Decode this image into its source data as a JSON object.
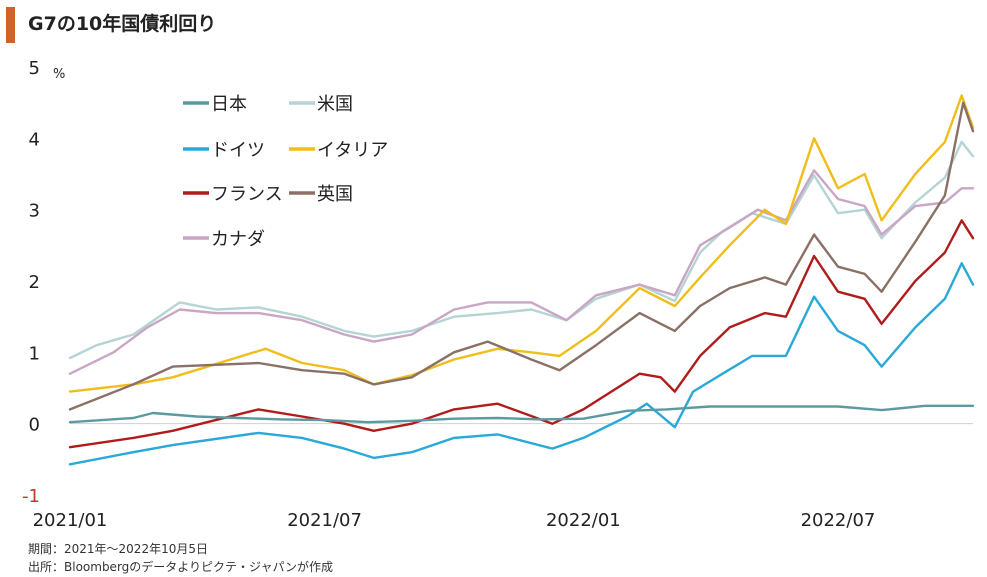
{
  "title": "G7の10年国債利回り",
  "notes": {
    "period": "期間：2021年～2022年10月5日",
    "source": "出所：Bloombergのデータよりピクテ・ジャパンが作成"
  },
  "chart_data": {
    "type": "line",
    "title": "G7の10年国債利回り",
    "ylabel": "%",
    "ylim": [
      -1,
      5
    ],
    "yticks": [
      {
        "value": 5,
        "label": "5"
      },
      {
        "value": 4,
        "label": "4"
      },
      {
        "value": 3,
        "label": "3"
      },
      {
        "value": 2,
        "label": "2"
      },
      {
        "value": 1,
        "label": "1"
      },
      {
        "value": 0,
        "label": "0"
      },
      {
        "value": -1,
        "label": "-1"
      }
    ],
    "xlim": [
      "2021-01-01",
      "2022-10-05"
    ],
    "xticks": [
      {
        "date": "2021-01-01",
        "label": "2021/01"
      },
      {
        "date": "2021-07-01",
        "label": "2021/07"
      },
      {
        "date": "2022-01-01",
        "label": "2022/01"
      },
      {
        "date": "2022-07-01",
        "label": "2022/07"
      }
    ],
    "legend_position": "top-left",
    "series": [
      {
        "name": "日本",
        "color": "#5b9aa0",
        "points": [
          [
            "2021-01-01",
            0.02
          ],
          [
            "2021-02-15",
            0.08
          ],
          [
            "2021-03-01",
            0.15
          ],
          [
            "2021-04-01",
            0.1
          ],
          [
            "2021-05-01",
            0.08
          ],
          [
            "2021-06-01",
            0.06
          ],
          [
            "2021-07-01",
            0.05
          ],
          [
            "2021-08-01",
            0.02
          ],
          [
            "2021-09-01",
            0.04
          ],
          [
            "2021-10-01",
            0.07
          ],
          [
            "2021-11-01",
            0.08
          ],
          [
            "2021-12-01",
            0.06
          ],
          [
            "2022-01-01",
            0.07
          ],
          [
            "2022-02-01",
            0.18
          ],
          [
            "2022-03-01",
            0.2
          ],
          [
            "2022-04-01",
            0.24
          ],
          [
            "2022-05-01",
            0.24
          ],
          [
            "2022-06-01",
            0.24
          ],
          [
            "2022-07-01",
            0.24
          ],
          [
            "2022-08-01",
            0.19
          ],
          [
            "2022-09-01",
            0.25
          ],
          [
            "2022-10-05",
            0.25
          ]
        ]
      },
      {
        "name": "米国",
        "color": "#b5d4d4",
        "points": [
          [
            "2021-01-01",
            0.92
          ],
          [
            "2021-01-20",
            1.1
          ],
          [
            "2021-02-15",
            1.25
          ],
          [
            "2021-03-20",
            1.7
          ],
          [
            "2021-04-15",
            1.6
          ],
          [
            "2021-05-15",
            1.63
          ],
          [
            "2021-06-15",
            1.5
          ],
          [
            "2021-07-15",
            1.3
          ],
          [
            "2021-08-05",
            1.22
          ],
          [
            "2021-09-01",
            1.3
          ],
          [
            "2021-10-01",
            1.5
          ],
          [
            "2021-11-01",
            1.55
          ],
          [
            "2021-11-25",
            1.6
          ],
          [
            "2021-12-20",
            1.45
          ],
          [
            "2022-01-10",
            1.75
          ],
          [
            "2022-02-10",
            1.95
          ],
          [
            "2022-03-07",
            1.72
          ],
          [
            "2022-03-25",
            2.4
          ],
          [
            "2022-04-10",
            2.7
          ],
          [
            "2022-05-01",
            2.95
          ],
          [
            "2022-05-25",
            2.8
          ],
          [
            "2022-06-14",
            3.48
          ],
          [
            "2022-07-01",
            2.95
          ],
          [
            "2022-07-20",
            3.0
          ],
          [
            "2022-08-01",
            2.6
          ],
          [
            "2022-08-25",
            3.1
          ],
          [
            "2022-09-15",
            3.45
          ],
          [
            "2022-09-27",
            3.95
          ],
          [
            "2022-10-05",
            3.75
          ]
        ]
      },
      {
        "name": "ドイツ",
        "color": "#2aa8d8",
        "points": [
          [
            "2021-01-01",
            -0.57
          ],
          [
            "2021-02-15",
            -0.4
          ],
          [
            "2021-03-15",
            -0.3
          ],
          [
            "2021-05-15",
            -0.13
          ],
          [
            "2021-06-15",
            -0.2
          ],
          [
            "2021-07-15",
            -0.35
          ],
          [
            "2021-08-05",
            -0.48
          ],
          [
            "2021-09-01",
            -0.4
          ],
          [
            "2021-10-01",
            -0.2
          ],
          [
            "2021-11-01",
            -0.15
          ],
          [
            "2021-12-10",
            -0.35
          ],
          [
            "2022-01-01",
            -0.2
          ],
          [
            "2022-02-01",
            0.1
          ],
          [
            "2022-02-15",
            0.28
          ],
          [
            "2022-03-07",
            -0.05
          ],
          [
            "2022-03-20",
            0.45
          ],
          [
            "2022-04-10",
            0.7
          ],
          [
            "2022-05-01",
            0.95
          ],
          [
            "2022-05-25",
            0.95
          ],
          [
            "2022-06-14",
            1.78
          ],
          [
            "2022-07-01",
            1.3
          ],
          [
            "2022-07-20",
            1.1
          ],
          [
            "2022-08-01",
            0.8
          ],
          [
            "2022-08-25",
            1.35
          ],
          [
            "2022-09-15",
            1.75
          ],
          [
            "2022-09-27",
            2.25
          ],
          [
            "2022-10-05",
            1.95
          ]
        ]
      },
      {
        "name": "イタリア",
        "color": "#f0be1a",
        "points": [
          [
            "2021-01-01",
            0.45
          ],
          [
            "2021-02-15",
            0.55
          ],
          [
            "2021-03-15",
            0.65
          ],
          [
            "2021-05-20",
            1.05
          ],
          [
            "2021-06-15",
            0.85
          ],
          [
            "2021-07-15",
            0.75
          ],
          [
            "2021-08-05",
            0.55
          ],
          [
            "2021-09-01",
            0.68
          ],
          [
            "2021-10-01",
            0.9
          ],
          [
            "2021-11-01",
            1.05
          ],
          [
            "2021-11-25",
            1.0
          ],
          [
            "2021-12-15",
            0.95
          ],
          [
            "2022-01-10",
            1.3
          ],
          [
            "2022-02-10",
            1.9
          ],
          [
            "2022-03-07",
            1.65
          ],
          [
            "2022-03-25",
            2.05
          ],
          [
            "2022-04-15",
            2.5
          ],
          [
            "2022-05-10",
            3.0
          ],
          [
            "2022-05-25",
            2.8
          ],
          [
            "2022-06-14",
            4.0
          ],
          [
            "2022-07-01",
            3.3
          ],
          [
            "2022-07-20",
            3.5
          ],
          [
            "2022-08-01",
            2.85
          ],
          [
            "2022-08-25",
            3.5
          ],
          [
            "2022-09-15",
            3.95
          ],
          [
            "2022-09-27",
            4.6
          ],
          [
            "2022-10-05",
            4.15
          ]
        ]
      },
      {
        "name": "フランス",
        "color": "#b01c1c",
        "points": [
          [
            "2021-01-01",
            -0.33
          ],
          [
            "2021-02-15",
            -0.2
          ],
          [
            "2021-03-15",
            -0.1
          ],
          [
            "2021-05-15",
            0.2
          ],
          [
            "2021-06-15",
            0.1
          ],
          [
            "2021-07-15",
            0.0
          ],
          [
            "2021-08-05",
            -0.1
          ],
          [
            "2021-09-01",
            0.0
          ],
          [
            "2021-10-01",
            0.2
          ],
          [
            "2021-11-01",
            0.28
          ],
          [
            "2021-12-10",
            0.0
          ],
          [
            "2022-01-01",
            0.2
          ],
          [
            "2022-02-10",
            0.7
          ],
          [
            "2022-02-25",
            0.65
          ],
          [
            "2022-03-07",
            0.45
          ],
          [
            "2022-03-25",
            0.95
          ],
          [
            "2022-04-15",
            1.35
          ],
          [
            "2022-05-10",
            1.55
          ],
          [
            "2022-05-25",
            1.5
          ],
          [
            "2022-06-14",
            2.35
          ],
          [
            "2022-07-01",
            1.85
          ],
          [
            "2022-07-20",
            1.75
          ],
          [
            "2022-08-01",
            1.4
          ],
          [
            "2022-08-25",
            2.0
          ],
          [
            "2022-09-15",
            2.4
          ],
          [
            "2022-09-27",
            2.85
          ],
          [
            "2022-10-05",
            2.6
          ]
        ]
      },
      {
        "name": "英国",
        "color": "#8a7065",
        "points": [
          [
            "2021-01-01",
            0.2
          ],
          [
            "2021-02-15",
            0.55
          ],
          [
            "2021-03-15",
            0.8
          ],
          [
            "2021-05-15",
            0.85
          ],
          [
            "2021-06-15",
            0.75
          ],
          [
            "2021-07-15",
            0.7
          ],
          [
            "2021-08-05",
            0.55
          ],
          [
            "2021-09-01",
            0.65
          ],
          [
            "2021-10-01",
            1.0
          ],
          [
            "2021-10-25",
            1.15
          ],
          [
            "2021-11-25",
            0.9
          ],
          [
            "2021-12-15",
            0.75
          ],
          [
            "2022-01-10",
            1.1
          ],
          [
            "2022-02-10",
            1.55
          ],
          [
            "2022-03-07",
            1.3
          ],
          [
            "2022-03-25",
            1.65
          ],
          [
            "2022-04-15",
            1.9
          ],
          [
            "2022-05-10",
            2.05
          ],
          [
            "2022-05-25",
            1.95
          ],
          [
            "2022-06-14",
            2.65
          ],
          [
            "2022-07-01",
            2.2
          ],
          [
            "2022-07-20",
            2.1
          ],
          [
            "2022-08-01",
            1.85
          ],
          [
            "2022-08-25",
            2.55
          ],
          [
            "2022-09-15",
            3.2
          ],
          [
            "2022-09-28",
            4.5
          ],
          [
            "2022-10-05",
            4.1
          ]
        ]
      },
      {
        "name": "カナダ",
        "color": "#c8a6c4",
        "points": [
          [
            "2021-01-01",
            0.7
          ],
          [
            "2021-02-01",
            1.0
          ],
          [
            "2021-02-25",
            1.35
          ],
          [
            "2021-03-20",
            1.6
          ],
          [
            "2021-04-15",
            1.55
          ],
          [
            "2021-05-15",
            1.55
          ],
          [
            "2021-06-15",
            1.45
          ],
          [
            "2021-07-15",
            1.25
          ],
          [
            "2021-08-05",
            1.15
          ],
          [
            "2021-09-01",
            1.25
          ],
          [
            "2021-10-01",
            1.6
          ],
          [
            "2021-10-25",
            1.7
          ],
          [
            "2021-11-25",
            1.7
          ],
          [
            "2021-12-20",
            1.45
          ],
          [
            "2022-01-10",
            1.8
          ],
          [
            "2022-02-10",
            1.95
          ],
          [
            "2022-03-07",
            1.8
          ],
          [
            "2022-03-25",
            2.5
          ],
          [
            "2022-04-15",
            2.75
          ],
          [
            "2022-05-05",
            3.0
          ],
          [
            "2022-05-25",
            2.85
          ],
          [
            "2022-06-14",
            3.55
          ],
          [
            "2022-07-01",
            3.15
          ],
          [
            "2022-07-20",
            3.05
          ],
          [
            "2022-08-01",
            2.65
          ],
          [
            "2022-08-25",
            3.05
          ],
          [
            "2022-09-15",
            3.1
          ],
          [
            "2022-09-27",
            3.3
          ],
          [
            "2022-10-05",
            3.3
          ]
        ]
      }
    ]
  }
}
